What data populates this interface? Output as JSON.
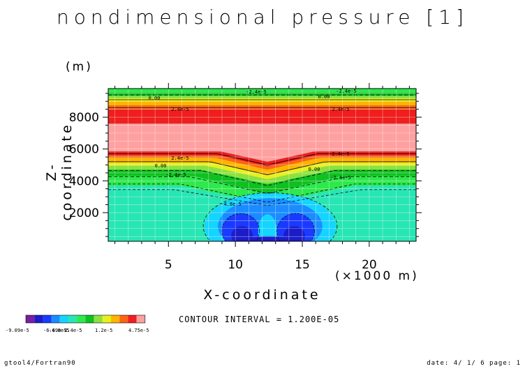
{
  "title": "nondimensional pressure [1]",
  "chart_data": {
    "type": "heatmap",
    "title": "nondimensional pressure [1]",
    "xlabel": "X-coordinate",
    "ylabel": "Z-coordinate",
    "x_unit": "(×1000 m)",
    "y_unit": "(m)",
    "xlim": [
      0.5,
      23.5
    ],
    "ylim": [
      200,
      9800
    ],
    "x_ticks": [
      5,
      10,
      15,
      20
    ],
    "y_ticks": [
      2000,
      4000,
      6000,
      8000
    ],
    "contour_interval": "CONTOUR INTERVAL = 1.200E-05",
    "contour_labels": [
      "-2.4e-5",
      "0.00",
      "2.4e-5",
      "2.4e-5",
      "0.00",
      "-2.4e-5",
      "-2.4e-5",
      "0.00",
      "2.4e-5",
      "2.4e-5",
      "0.00",
      "-2.4e-5",
      "-4.8e-5"
    ],
    "colorbar": {
      "colors": [
        "#7a1fa2",
        "#1c1cc8",
        "#1a3aff",
        "#1a8cff",
        "#15d4ff",
        "#28e6b4",
        "#2ee84c",
        "#10c020",
        "#8ee040",
        "#e6f01e",
        "#ffb400",
        "#ff6414",
        "#f01e1e",
        "#ffa0a0"
      ],
      "tick_labels": [
        "-9.09e-5",
        "-6.69e-5",
        "-4.8e-5",
        "-2.4e-5",
        "1.2e-5",
        "4.75e-5"
      ]
    }
  },
  "footer": {
    "left": "gtool4/Fortran90",
    "right": "date: 4/ 1/ 6 page: 1"
  }
}
